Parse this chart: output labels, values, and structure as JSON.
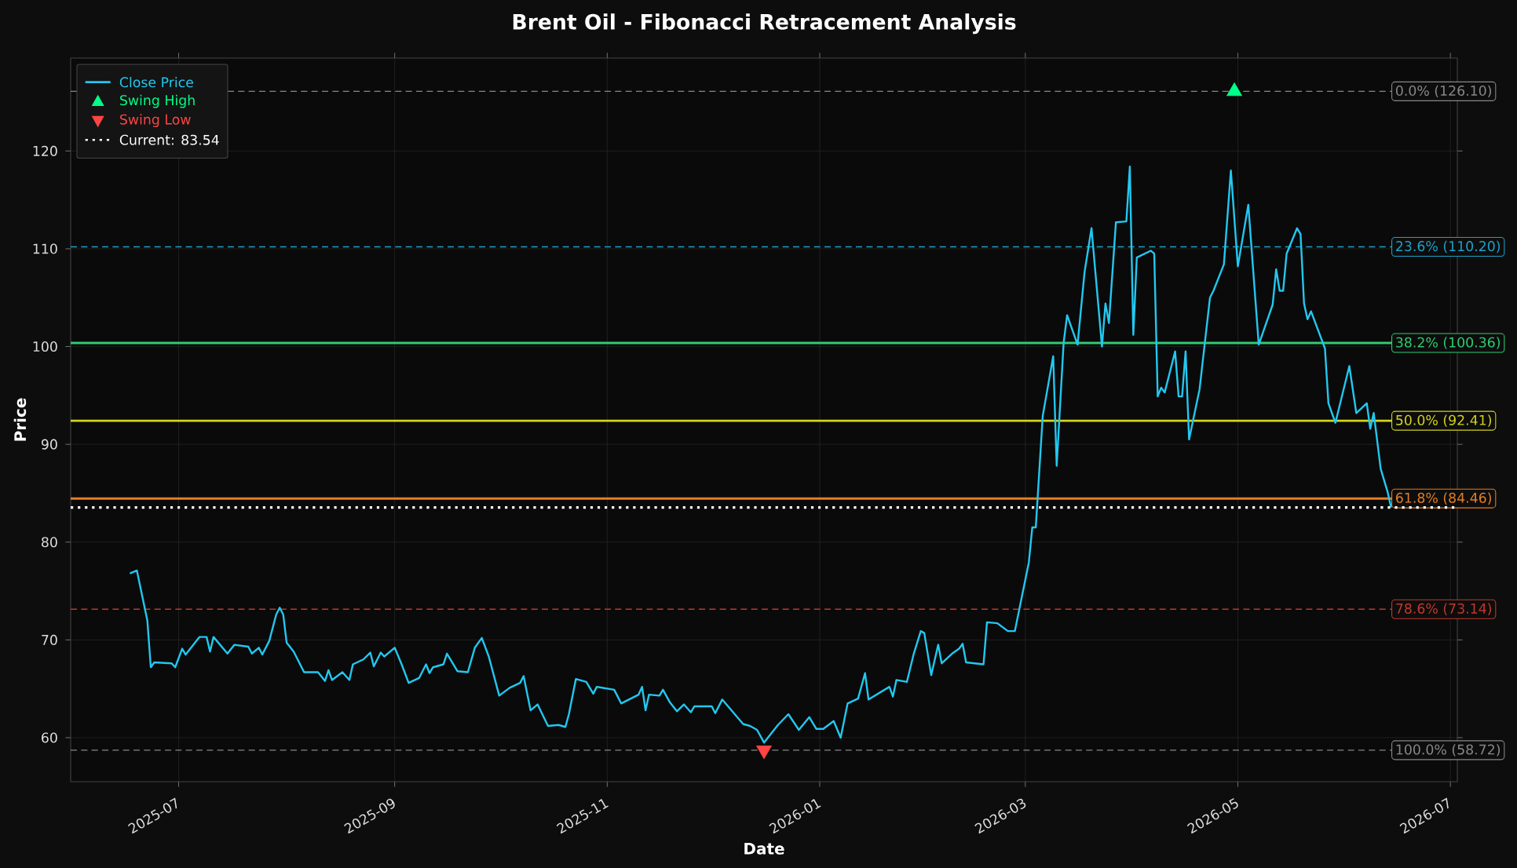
{
  "chart_data": {
    "type": "line",
    "title": "Brent Oil - Fibonacci Retracement Analysis",
    "xlabel": "Date",
    "ylabel": "Price",
    "xlim": [
      "2025-05-31",
      "2026-07-03"
    ],
    "ylim": [
      55.5,
      129.5
    ],
    "xticks": [
      "2025-07",
      "2025-09",
      "2025-11",
      "2026-01",
      "2026-03",
      "2026-05",
      "2026-07"
    ],
    "yticks": [
      60,
      70,
      80,
      90,
      100,
      110,
      120
    ],
    "grid": true,
    "legend": "top left",
    "series": [
      {
        "name": "Close Price",
        "color": "#22c8f0",
        "marker": "none",
        "line_style": "solid",
        "x": [
          "2025-06-17",
          "2025-06-19",
          "2025-06-22",
          "2025-06-23",
          "2025-06-24",
          "2025-06-29",
          "2025-06-30",
          "2025-07-02",
          "2025-07-03",
          "2025-07-07",
          "2025-07-09",
          "2025-07-10",
          "2025-07-11",
          "2025-07-15",
          "2025-07-17",
          "2025-07-21",
          "2025-07-22",
          "2025-07-24",
          "2025-07-25",
          "2025-07-27",
          "2025-07-29",
          "2025-07-30",
          "2025-07-31",
          "2025-08-01",
          "2025-08-03",
          "2025-08-06",
          "2025-08-10",
          "2025-08-12",
          "2025-08-13",
          "2025-08-14",
          "2025-08-17",
          "2025-08-19",
          "2025-08-20",
          "2025-08-23",
          "2025-08-25",
          "2025-08-26",
          "2025-08-28",
          "2025-08-29",
          "2025-09-01",
          "2025-09-03",
          "2025-09-05",
          "2025-09-08",
          "2025-09-10",
          "2025-09-11",
          "2025-09-12",
          "2025-09-15",
          "2025-09-16",
          "2025-09-19",
          "2025-09-22",
          "2025-09-24",
          "2025-09-26",
          "2025-09-28",
          "2025-10-01",
          "2025-10-04",
          "2025-10-07",
          "2025-10-08",
          "2025-10-10",
          "2025-10-12",
          "2025-10-15",
          "2025-10-18",
          "2025-10-20",
          "2025-10-21",
          "2025-10-23",
          "2025-10-26",
          "2025-10-28",
          "2025-10-29",
          "2025-11-03",
          "2025-11-05",
          "2025-11-10",
          "2025-11-11",
          "2025-11-12",
          "2025-11-13",
          "2025-11-16",
          "2025-11-17",
          "2025-11-19",
          "2025-11-21",
          "2025-11-23",
          "2025-11-25",
          "2025-11-26",
          "2025-12-01",
          "2025-12-02",
          "2025-12-04",
          "2025-12-10",
          "2025-12-12",
          "2025-12-14",
          "2025-12-16",
          "2025-12-20",
          "2025-12-23",
          "2025-12-26",
          "2025-12-29",
          "2025-12-31",
          "2026-01-02",
          "2026-01-05",
          "2026-01-07",
          "2026-01-09",
          "2026-01-12",
          "2026-01-14",
          "2026-01-15",
          "2026-01-21",
          "2026-01-22",
          "2026-01-23",
          "2026-01-26",
          "2026-01-28",
          "2026-01-30",
          "2026-01-31",
          "2026-02-02",
          "2026-02-04",
          "2026-02-05",
          "2026-02-08",
          "2026-02-10",
          "2026-02-11",
          "2026-02-12",
          "2026-02-17",
          "2026-02-18",
          "2026-02-21",
          "2026-02-24",
          "2026-02-26",
          "2026-03-02",
          "2026-03-03",
          "2026-03-04",
          "2026-03-06",
          "2026-03-09",
          "2026-03-10",
          "2026-03-12",
          "2026-03-13",
          "2026-03-16",
          "2026-03-18",
          "2026-03-20",
          "2026-03-23",
          "2026-03-24",
          "2026-03-25",
          "2026-03-27",
          "2026-03-30",
          "2026-03-31",
          "2026-04-01",
          "2026-04-02",
          "2026-04-06",
          "2026-04-07",
          "2026-04-08",
          "2026-04-09",
          "2026-04-10",
          "2026-04-13",
          "2026-04-14",
          "2026-04-15",
          "2026-04-16",
          "2026-04-17",
          "2026-04-20",
          "2026-04-23",
          "2026-04-24",
          "2026-04-27",
          "2026-04-29",
          "2026-05-01",
          "2026-05-04",
          "2026-05-07",
          "2026-05-11",
          "2026-05-12",
          "2026-05-13",
          "2026-05-14",
          "2026-05-15",
          "2026-05-18",
          "2026-05-19",
          "2026-05-20",
          "2026-05-21",
          "2026-05-22",
          "2026-05-26",
          "2026-05-27",
          "2026-05-29",
          "2026-06-02",
          "2026-06-04",
          "2026-06-07",
          "2026-06-08",
          "2026-06-09",
          "2026-06-11",
          "2026-06-13",
          "2026-06-14"
        ],
        "values": [
          76.8,
          77.1,
          72.0,
          67.2,
          67.7,
          67.6,
          67.2,
          69.1,
          68.5,
          70.3,
          70.3,
          68.8,
          70.3,
          68.6,
          69.5,
          69.3,
          68.6,
          69.2,
          68.5,
          69.9,
          72.6,
          73.3,
          72.6,
          69.7,
          68.8,
          66.7,
          66.7,
          65.8,
          66.9,
          65.9,
          66.7,
          65.9,
          67.5,
          68.0,
          68.7,
          67.3,
          68.7,
          68.3,
          69.2,
          67.5,
          65.6,
          66.1,
          67.5,
          66.6,
          67.2,
          67.5,
          68.6,
          66.8,
          66.7,
          69.2,
          70.2,
          68.3,
          64.3,
          65.1,
          65.6,
          66.3,
          62.8,
          63.4,
          61.2,
          61.3,
          61.1,
          62.4,
          66.0,
          65.7,
          64.5,
          65.2,
          64.9,
          63.5,
          64.4,
          65.2,
          62.8,
          64.4,
          64.3,
          64.9,
          63.6,
          62.7,
          63.4,
          62.6,
          63.2,
          63.2,
          62.5,
          63.9,
          61.4,
          61.2,
          60.8,
          59.5,
          61.3,
          62.4,
          60.8,
          62.1,
          60.9,
          60.9,
          61.7,
          60.0,
          63.5,
          64.0,
          66.6,
          63.9,
          65.2,
          64.2,
          65.9,
          65.7,
          68.6,
          70.9,
          70.7,
          66.4,
          69.5,
          67.6,
          68.6,
          69.1,
          69.6,
          67.7,
          67.5,
          71.8,
          71.7,
          70.9,
          70.9,
          77.9,
          81.5,
          81.5,
          92.9,
          99.0,
          87.8,
          100.4,
          103.2,
          100.2,
          107.6,
          112.1,
          100.0,
          104.4,
          102.4,
          112.7,
          112.8,
          118.4,
          101.2,
          109.1,
          109.8,
          109.5,
          94.9,
          95.8,
          95.3,
          99.5,
          94.9,
          94.9,
          99.5,
          90.5,
          95.6,
          105.0,
          105.7,
          108.4,
          118.0,
          108.2,
          114.5,
          100.2,
          104.3,
          107.9,
          105.7,
          105.7,
          109.5,
          112.1,
          111.5,
          104.4,
          102.8,
          103.6,
          99.8,
          94.2,
          92.2,
          98.0,
          93.2,
          94.2,
          91.6,
          93.2,
          87.5,
          85.1,
          83.54
        ]
      },
      {
        "name": "Swing High",
        "type": "scatter",
        "color": "#00ff88",
        "marker": "triangle",
        "x": [
          "2026-04-30"
        ],
        "values": [
          126.1
        ]
      },
      {
        "name": "Swing Low",
        "type": "scatter",
        "color": "#ff4444",
        "marker": "triangle-down",
        "x": [
          "2025-12-16"
        ],
        "values": [
          58.72
        ]
      },
      {
        "name": "Current: 83.54",
        "type": "line",
        "color": "#ffffff",
        "marker": "none",
        "line_style": "dotted",
        "x": [
          "2025-05-31",
          "2026-07-03"
        ],
        "values": [
          83.54,
          83.54
        ]
      }
    ],
    "ref_lines": [
      {
        "axis": "y",
        "value": 126.1,
        "label": "0.0% (126.10)",
        "color": "#888888",
        "line_style": "dashed"
      },
      {
        "axis": "y",
        "value": 110.2,
        "label": "23.6% (110.20)",
        "color": "#1ea0c8",
        "line_style": "dashed"
      },
      {
        "axis": "y",
        "value": 100.36,
        "label": "38.2% (100.36)",
        "color": "#2ecc71",
        "line_style": "solid"
      },
      {
        "axis": "y",
        "value": 92.41,
        "label": "50.0% (92.41)",
        "color": "#d4d41f",
        "line_style": "solid"
      },
      {
        "axis": "y",
        "value": 84.46,
        "label": "61.8% (84.46)",
        "color": "#e67e22",
        "line_style": "solid"
      },
      {
        "axis": "y",
        "value": 73.14,
        "label": "78.6% (73.14)",
        "color": "#c0392b",
        "line_style": "dashed"
      },
      {
        "axis": "y",
        "value": 58.72,
        "label": "100.0% (58.72)",
        "color": "#888888",
        "line_style": "dashed"
      }
    ]
  }
}
